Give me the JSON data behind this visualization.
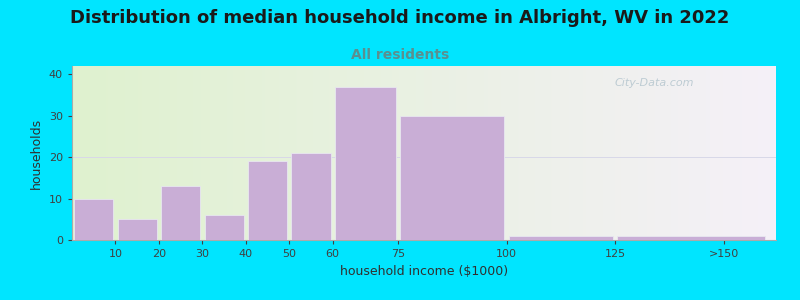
{
  "title": "Distribution of median household income in Albright, WV in 2022",
  "subtitle": "All residents",
  "xlabel": "household income ($1000)",
  "ylabel": "households",
  "bar_left_edges": [
    0,
    10,
    20,
    30,
    40,
    50,
    60,
    75,
    100,
    125
  ],
  "bar_right_edges": [
    10,
    20,
    30,
    40,
    50,
    60,
    75,
    100,
    125,
    160
  ],
  "bar_tick_labels": [
    "10",
    "20",
    "30",
    "40",
    "50",
    "60",
    "75",
    "100",
    "125",
    ">150"
  ],
  "bar_values": [
    10,
    5,
    13,
    6,
    19,
    21,
    37,
    30,
    1,
    1
  ],
  "bar_color": "#c9aed6",
  "bar_edgecolor": "#e8e8f0",
  "xlim": [
    0,
    162
  ],
  "ylim": [
    0,
    42
  ],
  "yticks": [
    0,
    10,
    20,
    30,
    40
  ],
  "xtick_positions": [
    10,
    20,
    30,
    40,
    50,
    60,
    75,
    100,
    125,
    150
  ],
  "xtick_labels": [
    "10",
    "20",
    "30",
    "40",
    "50",
    "60",
    "75",
    "100",
    "125",
    ">150"
  ],
  "background_color": "#00e5ff",
  "plot_bg_left_color": "#dff2cf",
  "plot_bg_right_color": "#f5f0f8",
  "title_fontsize": 13,
  "subtitle_fontsize": 10,
  "subtitle_color": "#5a9090",
  "axis_label_fontsize": 9,
  "tick_fontsize": 8,
  "watermark_text": "City-Data.com",
  "watermark_color": "#b8c8d0",
  "hline_y": 20,
  "hline_color": "#d8d8e8"
}
